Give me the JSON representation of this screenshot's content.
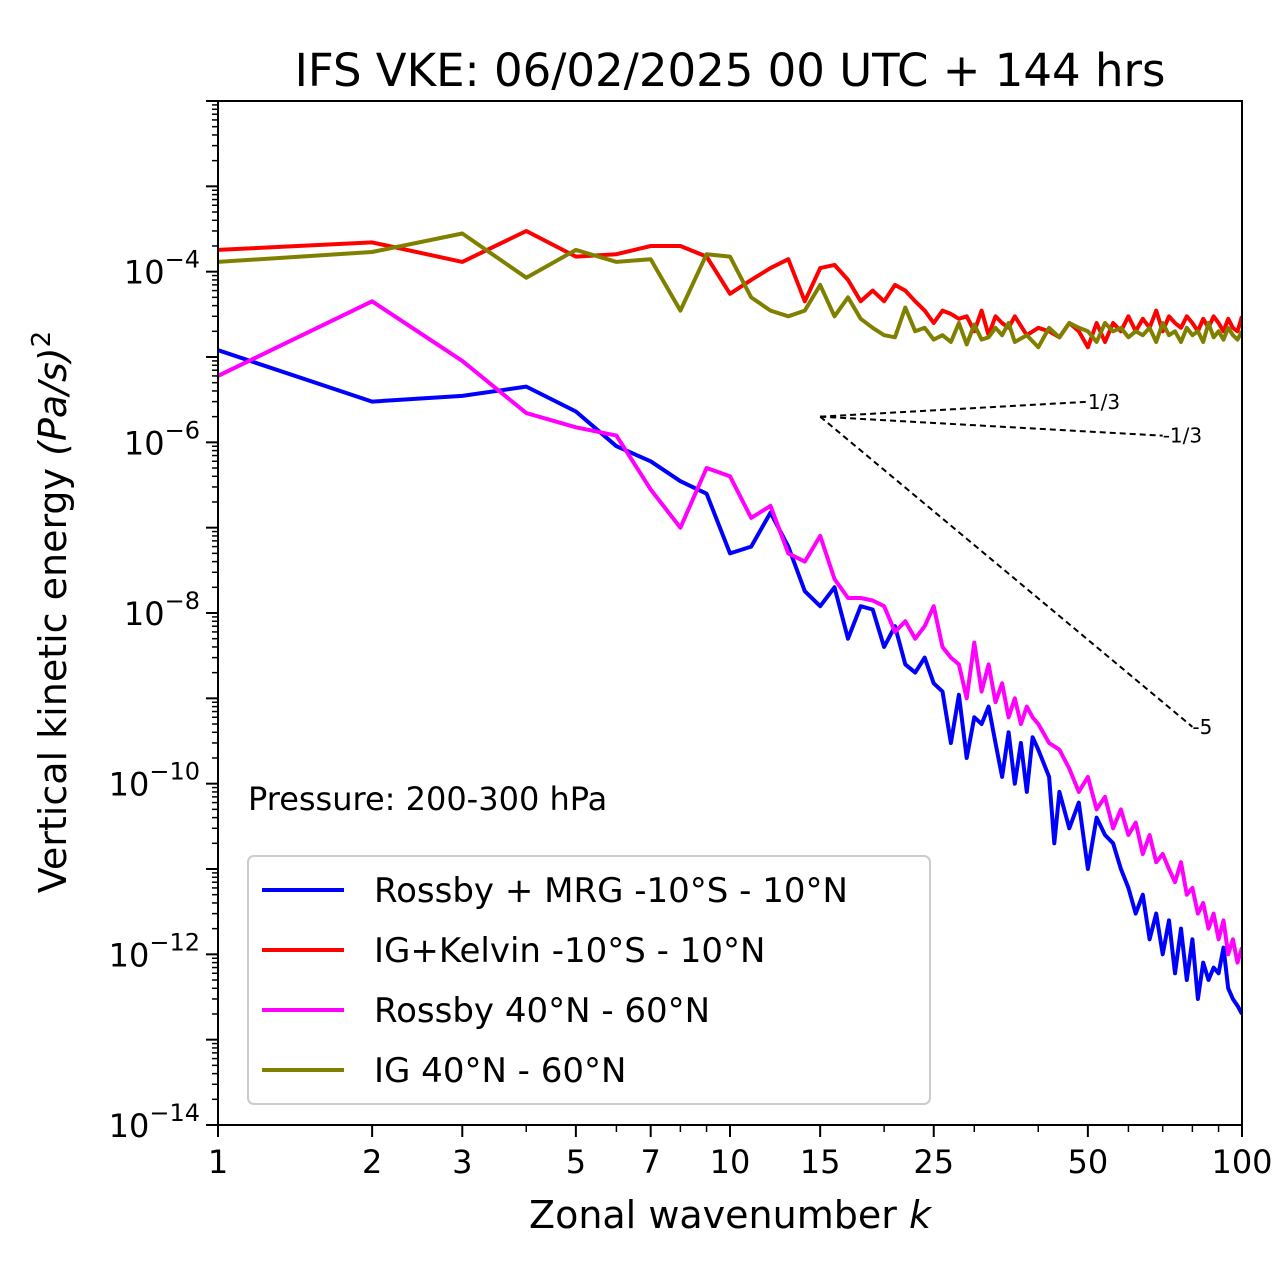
{
  "chart_data": {
    "type": "line",
    "title": "IFS VKE: 06/02/2025 00 UTC + 144 hrs",
    "xlabel": "Zonal wavenumber",
    "xlabel_var": "k",
    "ylabel": "Vertical kinetic energy",
    "ylabel_unit": "(Pa/s)",
    "ylabel_exp": "2",
    "xscale": "log",
    "yscale": "log",
    "xlim": [
      1,
      100
    ],
    "ylim": [
      1e-14,
      0.01
    ],
    "xticks": [
      1,
      2,
      3,
      5,
      7,
      10,
      15,
      25,
      50,
      100
    ],
    "xtick_labels": [
      "1",
      "2",
      "3",
      "5",
      "7",
      "10",
      "15",
      "25",
      "50",
      "100"
    ],
    "yticks_exp": [
      -14,
      -12,
      -10,
      -8,
      -6,
      -4
    ],
    "ytick_base": "10",
    "ytick_exp_labels": [
      "−14",
      "−12",
      "−10",
      "−8",
      "−6",
      "−4"
    ],
    "annotation": "Pressure: 200-300 hPa",
    "legend_position": "lower-left",
    "reference_slopes": [
      {
        "label": "1/3",
        "slope": 0.3333,
        "x0": 15,
        "y0": 2e-06,
        "x1": 50
      },
      {
        "label": "-1/3",
        "slope": -0.3333,
        "x0": 15,
        "y0": 2e-06,
        "x1": 70
      },
      {
        "label": "-5",
        "slope": -5,
        "x0": 15,
        "y0": 2e-06,
        "x1": 80
      }
    ],
    "series": [
      {
        "name": "Rossby + MRG -10°S - 10°N",
        "color": "#0000ff",
        "points": [
          [
            1,
            1.2e-05
          ],
          [
            2,
            3e-06
          ],
          [
            3,
            3.5e-06
          ],
          [
            4,
            4.5e-06
          ],
          [
            5,
            2.3e-06
          ],
          [
            6,
            9e-07
          ],
          [
            7,
            6e-07
          ],
          [
            8,
            3.5e-07
          ],
          [
            9,
            2.5e-07
          ],
          [
            10,
            5e-08
          ],
          [
            11,
            6e-08
          ],
          [
            12,
            1.5e-07
          ],
          [
            13,
            6e-08
          ],
          [
            14,
            1.8e-08
          ],
          [
            15,
            1.2e-08
          ],
          [
            16,
            2e-08
          ],
          [
            17,
            5e-09
          ],
          [
            18,
            1.2e-08
          ],
          [
            19,
            1.1e-08
          ],
          [
            20,
            4e-09
          ],
          [
            21,
            7e-09
          ],
          [
            22,
            2.5e-09
          ],
          [
            23,
            2e-09
          ],
          [
            24,
            3e-09
          ],
          [
            25,
            1.5e-09
          ],
          [
            26,
            1.2e-09
          ],
          [
            27,
            3e-10
          ],
          [
            28,
            1.1e-09
          ],
          [
            29,
            2e-10
          ],
          [
            30,
            6e-10
          ],
          [
            31,
            5e-10
          ],
          [
            32,
            8e-10
          ],
          [
            33,
            3e-10
          ],
          [
            34,
            1.2e-10
          ],
          [
            35,
            4e-10
          ],
          [
            36,
            1e-10
          ],
          [
            37,
            3e-10
          ],
          [
            38,
            8e-11
          ],
          [
            39,
            3.5e-10
          ],
          [
            40,
            2.5e-10
          ],
          [
            42,
            1.2e-10
          ],
          [
            43,
            2e-11
          ],
          [
            44,
            8e-11
          ],
          [
            46,
            3e-11
          ],
          [
            48,
            6e-11
          ],
          [
            50,
            1e-11
          ],
          [
            52,
            4e-11
          ],
          [
            54,
            2.5e-11
          ],
          [
            56,
            2e-11
          ],
          [
            58,
            1e-11
          ],
          [
            60,
            6e-12
          ],
          [
            62,
            3e-12
          ],
          [
            64,
            5e-12
          ],
          [
            66,
            1.5e-12
          ],
          [
            68,
            3e-12
          ],
          [
            70,
            1e-12
          ],
          [
            72,
            2.5e-12
          ],
          [
            74,
            6e-13
          ],
          [
            76,
            2e-12
          ],
          [
            78,
            5e-13
          ],
          [
            80,
            1.5e-12
          ],
          [
            82,
            3e-13
          ],
          [
            84,
            8e-13
          ],
          [
            86,
            5e-13
          ],
          [
            88,
            7e-13
          ],
          [
            90,
            6e-13
          ],
          [
            92,
            1.2e-12
          ],
          [
            94,
            4e-13
          ],
          [
            96,
            3e-13
          ],
          [
            98,
            2.5e-13
          ],
          [
            100,
            2e-13
          ]
        ]
      },
      {
        "name": "IG+Kelvin -10°S - 10°N",
        "color": "#ff0000",
        "points": [
          [
            1,
            0.00018
          ],
          [
            2,
            0.00022
          ],
          [
            3,
            0.00013
          ],
          [
            4,
            0.0003
          ],
          [
            5,
            0.00015
          ],
          [
            6,
            0.00016
          ],
          [
            7,
            0.0002
          ],
          [
            8,
            0.0002
          ],
          [
            9,
            0.00015
          ],
          [
            10,
            5.5e-05
          ],
          [
            11,
            8e-05
          ],
          [
            12,
            0.00011
          ],
          [
            13,
            0.00014
          ],
          [
            14,
            4.5e-05
          ],
          [
            15,
            0.00011
          ],
          [
            16,
            0.00012
          ],
          [
            17,
            8e-05
          ],
          [
            18,
            4.5e-05
          ],
          [
            19,
            6e-05
          ],
          [
            20,
            4.5e-05
          ],
          [
            21,
            7e-05
          ],
          [
            22,
            6e-05
          ],
          [
            23,
            4.5e-05
          ],
          [
            24,
            3.5e-05
          ],
          [
            25,
            2.5e-05
          ],
          [
            26,
            3.5e-05
          ],
          [
            27,
            3.2e-05
          ],
          [
            28,
            2.8e-05
          ],
          [
            29,
            3e-05
          ],
          [
            30,
            2e-05
          ],
          [
            31,
            3.5e-05
          ],
          [
            32,
            1.8e-05
          ],
          [
            33,
            3e-05
          ],
          [
            34,
            2.5e-05
          ],
          [
            35,
            2.2e-05
          ],
          [
            36,
            3e-05
          ],
          [
            38,
            1.8e-05
          ],
          [
            40,
            2.2e-05
          ],
          [
            42,
            2e-05
          ],
          [
            44,
            1.7e-05
          ],
          [
            46,
            2.5e-05
          ],
          [
            48,
            2e-05
          ],
          [
            50,
            1.3e-05
          ],
          [
            52,
            2.5e-05
          ],
          [
            54,
            1.5e-05
          ],
          [
            56,
            2.5e-05
          ],
          [
            58,
            2e-05
          ],
          [
            60,
            3e-05
          ],
          [
            62,
            2e-05
          ],
          [
            64,
            2.8e-05
          ],
          [
            66,
            2.2e-05
          ],
          [
            68,
            3.5e-05
          ],
          [
            70,
            2e-05
          ],
          [
            72,
            3e-05
          ],
          [
            74,
            2.5e-05
          ],
          [
            76,
            2.2e-05
          ],
          [
            78,
            3e-05
          ],
          [
            80,
            2.5e-05
          ],
          [
            82,
            2e-05
          ],
          [
            84,
            2.8e-05
          ],
          [
            86,
            2.2e-05
          ],
          [
            88,
            3e-05
          ],
          [
            90,
            2.5e-05
          ],
          [
            92,
            2e-05
          ],
          [
            94,
            2.8e-05
          ],
          [
            96,
            2.2e-05
          ],
          [
            98,
            2e-05
          ],
          [
            100,
            3e-05
          ]
        ]
      },
      {
        "name": "Rossby 40°N - 60°N",
        "color": "#ff00ff",
        "points": [
          [
            1,
            6e-06
          ],
          [
            2,
            4.5e-05
          ],
          [
            3,
            9e-06
          ],
          [
            4,
            2.2e-06
          ],
          [
            5,
            1.5e-06
          ],
          [
            6,
            1.2e-06
          ],
          [
            7,
            2.8e-07
          ],
          [
            8,
            1e-07
          ],
          [
            9,
            5e-07
          ],
          [
            10,
            4e-07
          ],
          [
            11,
            1.3e-07
          ],
          [
            12,
            1.8e-07
          ],
          [
            13,
            5e-08
          ],
          [
            14,
            4e-08
          ],
          [
            15,
            8e-08
          ],
          [
            16,
            2.5e-08
          ],
          [
            17,
            1.5e-08
          ],
          [
            18,
            1.5e-08
          ],
          [
            19,
            1.4e-08
          ],
          [
            20,
            1.2e-08
          ],
          [
            21,
            6e-09
          ],
          [
            22,
            8e-09
          ],
          [
            23,
            5e-09
          ],
          [
            24,
            7e-09
          ],
          [
            25,
            1.2e-08
          ],
          [
            26,
            4e-09
          ],
          [
            27,
            3e-09
          ],
          [
            28,
            2.5e-09
          ],
          [
            29,
            1e-09
          ],
          [
            30,
            4.5e-09
          ],
          [
            31,
            1.2e-09
          ],
          [
            32,
            2.5e-09
          ],
          [
            33,
            9e-10
          ],
          [
            34,
            1.5e-09
          ],
          [
            35,
            6e-10
          ],
          [
            36,
            1e-09
          ],
          [
            37,
            5e-10
          ],
          [
            38,
            8e-10
          ],
          [
            39,
            6e-10
          ],
          [
            40,
            5e-10
          ],
          [
            42,
            3e-10
          ],
          [
            44,
            2.5e-10
          ],
          [
            46,
            1.5e-10
          ],
          [
            48,
            8e-11
          ],
          [
            50,
            1.2e-10
          ],
          [
            52,
            5e-11
          ],
          [
            54,
            7e-11
          ],
          [
            56,
            3e-11
          ],
          [
            58,
            5e-11
          ],
          [
            60,
            2.5e-11
          ],
          [
            62,
            3.5e-11
          ],
          [
            64,
            1.5e-11
          ],
          [
            66,
            2.5e-11
          ],
          [
            68,
            1.2e-11
          ],
          [
            70,
            1.5e-11
          ],
          [
            72,
            1e-11
          ],
          [
            74,
            7e-12
          ],
          [
            76,
            1.2e-11
          ],
          [
            78,
            5e-12
          ],
          [
            80,
            6e-12
          ],
          [
            82,
            3e-12
          ],
          [
            84,
            4e-12
          ],
          [
            86,
            2e-12
          ],
          [
            88,
            3e-12
          ],
          [
            90,
            1.5e-12
          ],
          [
            92,
            2.5e-12
          ],
          [
            94,
            1e-12
          ],
          [
            96,
            1.5e-12
          ],
          [
            98,
            8e-13
          ],
          [
            100,
            1.2e-12
          ]
        ]
      },
      {
        "name": "IG 40°N - 60°N",
        "color": "#808000",
        "points": [
          [
            1,
            0.00013
          ],
          [
            2,
            0.00017
          ],
          [
            3,
            0.00028
          ],
          [
            4,
            8.5e-05
          ],
          [
            5,
            0.00018
          ],
          [
            6,
            0.00013
          ],
          [
            7,
            0.00014
          ],
          [
            8,
            3.5e-05
          ],
          [
            9,
            0.00016
          ],
          [
            10,
            0.00015
          ],
          [
            11,
            5e-05
          ],
          [
            12,
            3.5e-05
          ],
          [
            13,
            3e-05
          ],
          [
            14,
            3.5e-05
          ],
          [
            15,
            7e-05
          ],
          [
            16,
            3e-05
          ],
          [
            17,
            5e-05
          ],
          [
            18,
            2.8e-05
          ],
          [
            19,
            2.2e-05
          ],
          [
            20,
            1.8e-05
          ],
          [
            21,
            1.7e-05
          ],
          [
            22,
            3.8e-05
          ],
          [
            23,
            2e-05
          ],
          [
            24,
            2.2e-05
          ],
          [
            25,
            1.6e-05
          ],
          [
            26,
            1.8e-05
          ],
          [
            27,
            1.5e-05
          ],
          [
            28,
            2.5e-05
          ],
          [
            29,
            1.4e-05
          ],
          [
            30,
            2.4e-05
          ],
          [
            31,
            1.6e-05
          ],
          [
            32,
            1.7e-05
          ],
          [
            33,
            2.2e-05
          ],
          [
            34,
            1.8e-05
          ],
          [
            35,
            2.5e-05
          ],
          [
            36,
            1.5e-05
          ],
          [
            38,
            1.8e-05
          ],
          [
            40,
            1.3e-05
          ],
          [
            42,
            2.2e-05
          ],
          [
            44,
            1.7e-05
          ],
          [
            46,
            2.5e-05
          ],
          [
            48,
            2.2e-05
          ],
          [
            50,
            2e-05
          ],
          [
            52,
            1.5e-05
          ],
          [
            54,
            2.5e-05
          ],
          [
            56,
            2e-05
          ],
          [
            58,
            2.2e-05
          ],
          [
            60,
            1.7e-05
          ],
          [
            62,
            2e-05
          ],
          [
            64,
            1.8e-05
          ],
          [
            66,
            2.2e-05
          ],
          [
            68,
            1.5e-05
          ],
          [
            70,
            2.5e-05
          ],
          [
            72,
            1.8e-05
          ],
          [
            74,
            2e-05
          ],
          [
            76,
            1.5e-05
          ],
          [
            78,
            2.2e-05
          ],
          [
            80,
            1.8e-05
          ],
          [
            82,
            2e-05
          ],
          [
            84,
            1.5e-05
          ],
          [
            86,
            2.5e-05
          ],
          [
            88,
            1.7e-05
          ],
          [
            90,
            2e-05
          ],
          [
            92,
            1.6e-05
          ],
          [
            94,
            2.2e-05
          ],
          [
            96,
            1.8e-05
          ],
          [
            98,
            1.6e-05
          ],
          [
            100,
            2e-05
          ]
        ]
      }
    ]
  }
}
